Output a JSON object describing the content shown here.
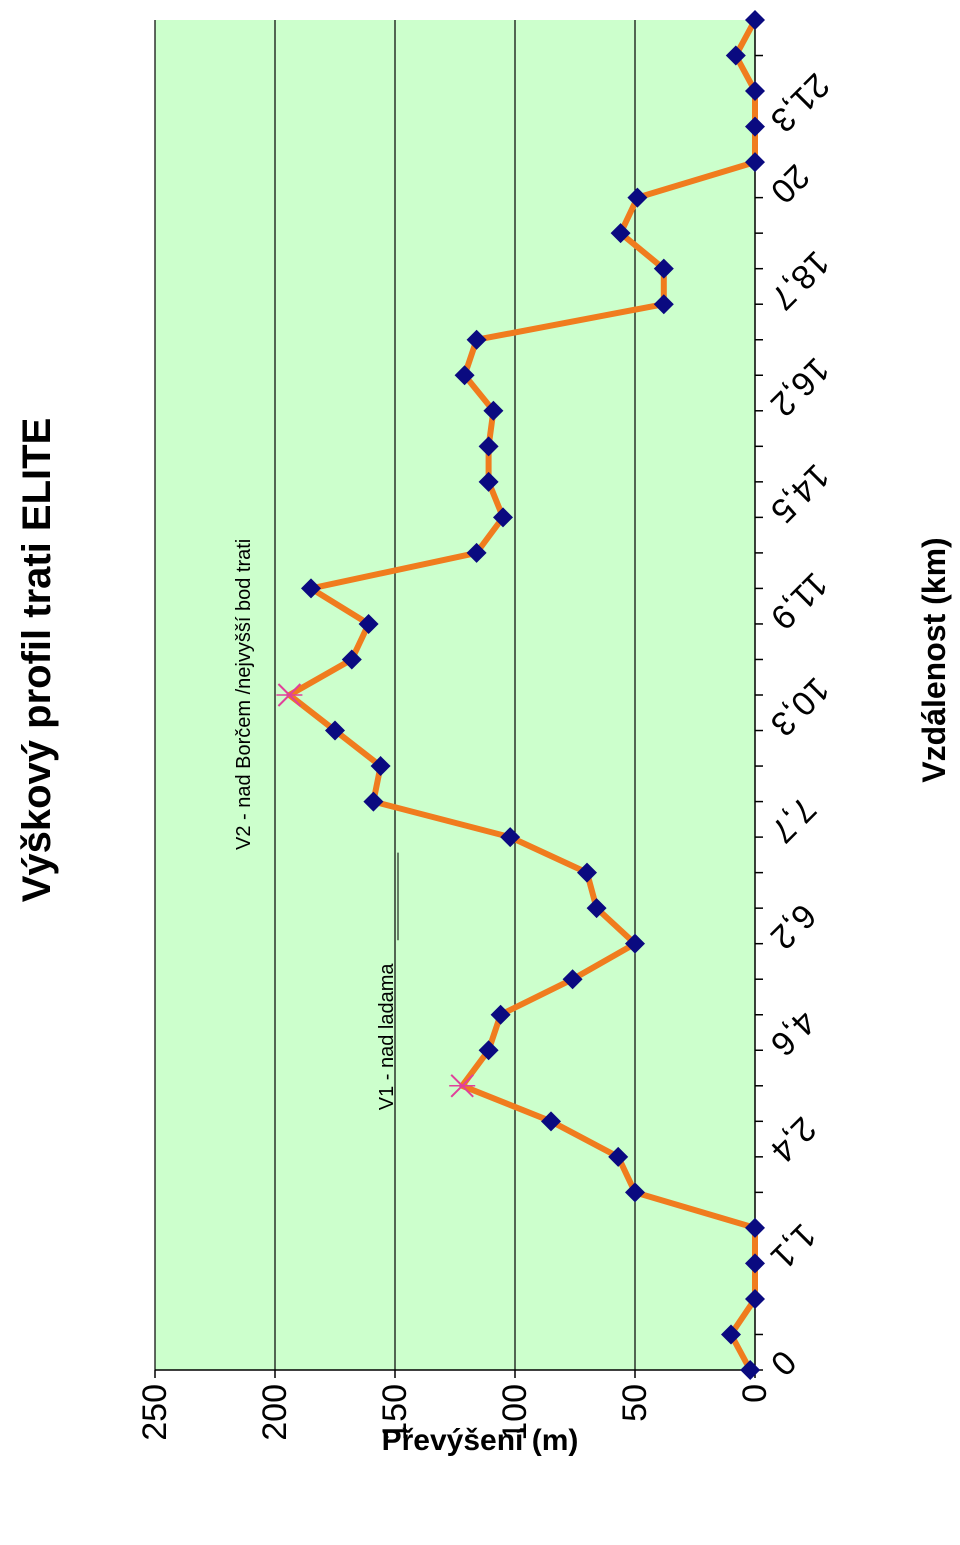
{
  "chart_data": {
    "type": "line",
    "title": "Výškový profil trati ELITE",
    "xlabel": "Vzdálenost (km)",
    "ylabel": "Převýšení (m)",
    "ylim": [
      0,
      250
    ],
    "yticks": [
      "0",
      "50",
      "100",
      "150",
      "200",
      "250"
    ],
    "xtick_labels": [
      {
        "label": "0",
        "index": 0
      },
      {
        "label": "1,1",
        "index": 3
      },
      {
        "label": "2,4",
        "index": 6
      },
      {
        "label": "4,6",
        "index": 9
      },
      {
        "label": "6,2",
        "index": 12
      },
      {
        "label": "7,7",
        "index": 15
      },
      {
        "label": "10,3",
        "index": 18
      },
      {
        "label": "11,9",
        "index": 21
      },
      {
        "label": "14,5",
        "index": 24
      },
      {
        "label": "16,2",
        "index": 27
      },
      {
        "label": "18,7",
        "index": 30
      },
      {
        "label": "20",
        "index": 33
      },
      {
        "label": "21,3",
        "index": 35
      }
    ],
    "grid": "horizontal",
    "series": [
      {
        "name": "",
        "color": "#f07c1e",
        "marker_color": "#0a0a80",
        "values": [
          2,
          10,
          0,
          0,
          0,
          50,
          57,
          85,
          122,
          111,
          106,
          76,
          50,
          66,
          70,
          102,
          159,
          156,
          175,
          194,
          168,
          161,
          185,
          116,
          105,
          111,
          111,
          109,
          121,
          116,
          38,
          38,
          56,
          49,
          0,
          0,
          0,
          8,
          0
        ]
      }
    ],
    "highlight_points": [
      {
        "index": 8,
        "marker": "x",
        "color": "#e0409a"
      },
      {
        "index": 19,
        "marker": "x",
        "color": "#e0409a"
      }
    ],
    "annotations": [
      {
        "text": "V1 - nad ladama",
        "index": 9
      },
      {
        "text": "V2 - nad Borčem /nejvyšší bod trati",
        "index": 19
      }
    ],
    "colors": {
      "plot_background": "#ccffcc",
      "gridline": "#000000",
      "line": "#f07c1e",
      "marker": "#0a0a80",
      "highlight": "#e0409a"
    }
  }
}
